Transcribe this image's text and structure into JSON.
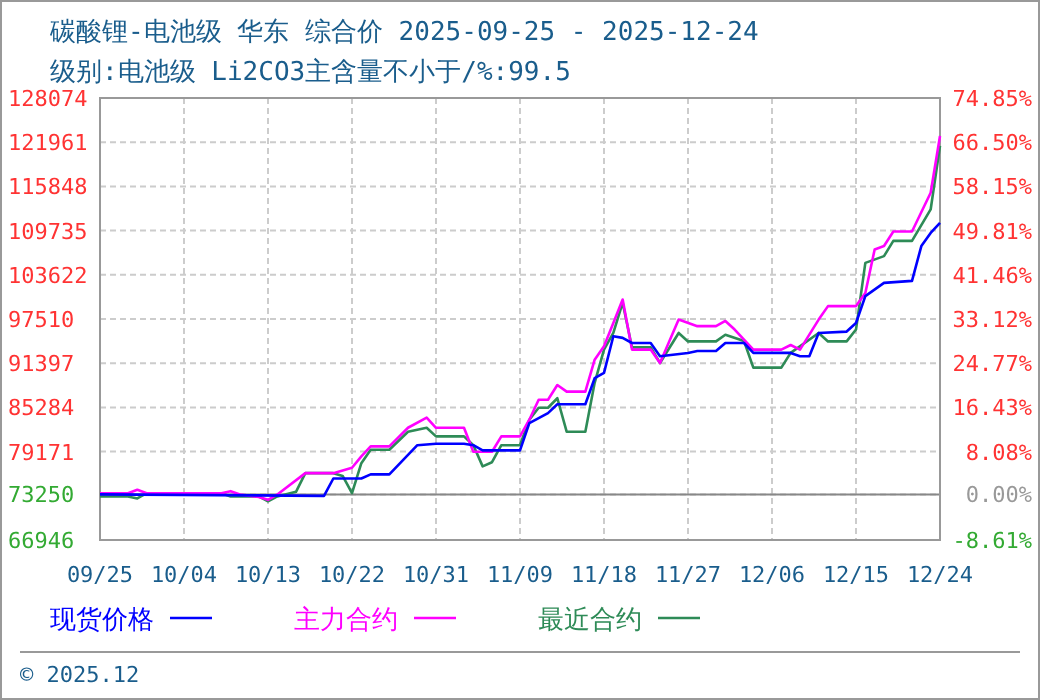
{
  "chart_data": {
    "type": "line",
    "title": "碳酸锂-电池级 华东 综合价 2025-09-25 - 2025-12-24",
    "subtitle": "级别:电池级 Li2CO3主含量不小于/%:99.5",
    "annotations": [
      "© 2025.12"
    ],
    "xlim": [
      "2025-09-25",
      "2025-12-24"
    ],
    "xticks": [
      {
        "value": "2025-09-25",
        "label": "09/25"
      },
      {
        "value": "2025-10-04",
        "label": "10/04"
      },
      {
        "value": "2025-10-13",
        "label": "10/13"
      },
      {
        "value": "2025-10-22",
        "label": "10/22"
      },
      {
        "value": "2025-10-31",
        "label": "10/31"
      },
      {
        "value": "2025-11-09",
        "label": "11/09"
      },
      {
        "value": "2025-11-18",
        "label": "11/18"
      },
      {
        "value": "2025-11-27",
        "label": "11/27"
      },
      {
        "value": "2025-12-06",
        "label": "12/06"
      },
      {
        "value": "2025-12-15",
        "label": "12/15"
      },
      {
        "value": "2025-12-24",
        "label": "12/24"
      }
    ],
    "ylim": [
      66946,
      128074
    ],
    "yticks": [
      66946,
      73250,
      79171,
      85284,
      91397,
      97510,
      103622,
      109735,
      115848,
      121961,
      128074
    ],
    "y2lim": [
      -8.61,
      74.85
    ],
    "y2ticks": [
      {
        "value": -8.61,
        "label": "-8.61%"
      },
      {
        "value": 0,
        "label": "0.00%"
      },
      {
        "value": 8.08,
        "label": "8.08%"
      },
      {
        "value": 16.43,
        "label": "16.43%"
      },
      {
        "value": 24.77,
        "label": "24.77%"
      },
      {
        "value": 33.12,
        "label": "33.12%"
      },
      {
        "value": 41.46,
        "label": "41.46%"
      },
      {
        "value": 49.81,
        "label": "49.81%"
      },
      {
        "value": 58.15,
        "label": "58.15%"
      },
      {
        "value": 66.5,
        "label": "66.50%"
      },
      {
        "value": 74.85,
        "label": "74.85%"
      }
    ],
    "grid": true,
    "legend": "bottom",
    "line_style": "solid",
    "series": [
      {
        "name": "现货价格",
        "color": "#0000ff",
        "x": [
          "2025-09-25",
          "2025-10-19",
          "2025-10-20",
          "2025-10-23",
          "2025-10-24",
          "2025-10-26",
          "2025-10-29",
          "2025-10-31",
          "2025-11-03",
          "2025-11-04",
          "2025-11-05",
          "2025-11-09",
          "2025-11-10",
          "2025-11-12",
          "2025-11-13",
          "2025-11-16",
          "2025-11-17",
          "2025-11-18",
          "2025-11-19",
          "2025-11-20",
          "2025-11-21",
          "2025-11-23",
          "2025-11-24",
          "2025-11-27",
          "2025-11-28",
          "2025-11-30",
          "2025-12-01",
          "2025-12-03",
          "2025-12-04",
          "2025-12-08",
          "2025-12-09",
          "2025-12-10",
          "2025-12-11",
          "2025-12-14",
          "2025-12-15",
          "2025-12-16",
          "2025-12-18",
          "2025-12-21",
          "2025-12-22",
          "2025-12-23",
          "2025-12-24"
        ],
        "values": [
          73250,
          73050,
          75450,
          75450,
          76020,
          76020,
          80060,
          80260,
          80260,
          80060,
          79340,
          79340,
          83110,
          84500,
          85720,
          85720,
          89320,
          90060,
          95130,
          94900,
          94190,
          94190,
          92360,
          92820,
          93080,
          93080,
          94190,
          94190,
          92820,
          92820,
          92360,
          92360,
          95580,
          95770,
          96960,
          100670,
          102500,
          102780,
          107600,
          109420,
          110820
        ]
      },
      {
        "name": "主力合约",
        "color": "#ff00ff",
        "x": [
          "2025-09-25",
          "2025-09-28",
          "2025-09-29",
          "2025-09-30",
          "2025-10-08",
          "2025-10-09",
          "2025-10-10",
          "2025-10-12",
          "2025-10-13",
          "2025-10-14",
          "2025-10-17",
          "2025-10-20",
          "2025-10-22",
          "2025-10-23",
          "2025-10-24",
          "2025-10-26",
          "2025-10-28",
          "2025-10-30",
          "2025-10-31",
          "2025-11-03",
          "2025-11-04",
          "2025-11-06",
          "2025-11-07",
          "2025-11-09",
          "2025-11-10",
          "2025-11-11",
          "2025-11-12",
          "2025-11-13",
          "2025-11-14",
          "2025-11-16",
          "2025-11-17",
          "2025-11-18",
          "2025-11-19",
          "2025-11-20",
          "2025-11-21",
          "2025-11-23",
          "2025-11-24",
          "2025-11-26",
          "2025-11-28",
          "2025-11-30",
          "2025-12-01",
          "2025-12-02",
          "2025-12-04",
          "2025-12-07",
          "2025-12-08",
          "2025-12-09",
          "2025-12-11",
          "2025-12-12",
          "2025-12-15",
          "2025-12-16",
          "2025-12-17",
          "2025-12-18",
          "2025-12-19",
          "2025-12-21",
          "2025-12-23",
          "2025-12-24"
        ],
        "values": [
          73420,
          73420,
          73890,
          73420,
          73420,
          73700,
          73250,
          72900,
          72500,
          73250,
          76190,
          76190,
          76930,
          78510,
          79900,
          79900,
          82470,
          83860,
          82470,
          82470,
          79150,
          79150,
          81280,
          81280,
          83580,
          86350,
          86350,
          88380,
          87460,
          87460,
          91890,
          93750,
          96960,
          100200,
          93280,
          93280,
          91420,
          97430,
          96520,
          96520,
          97240,
          96050,
          93280,
          93280,
          93910,
          93280,
          97430,
          99290,
          99290,
          101120,
          107130,
          107600,
          109620,
          109620,
          114970,
          122830
        ]
      },
      {
        "name": "最近合约",
        "color": "#2e8b57",
        "x": [
          "2025-09-25",
          "2025-09-28",
          "2025-09-29",
          "2025-09-30",
          "2025-10-08",
          "2025-10-09",
          "2025-10-12",
          "2025-10-13",
          "2025-10-14",
          "2025-10-16",
          "2025-10-17",
          "2025-10-20",
          "2025-10-21",
          "2025-10-22",
          "2025-10-23",
          "2025-10-24",
          "2025-10-26",
          "2025-10-28",
          "2025-10-30",
          "2025-10-31",
          "2025-11-03",
          "2025-11-04",
          "2025-11-05",
          "2025-11-06",
          "2025-11-07",
          "2025-11-09",
          "2025-11-10",
          "2025-11-11",
          "2025-11-12",
          "2025-11-13",
          "2025-11-14",
          "2025-11-16",
          "2025-11-17",
          "2025-11-18",
          "2025-11-19",
          "2025-11-20",
          "2025-11-21",
          "2025-11-23",
          "2025-11-24",
          "2025-11-26",
          "2025-11-27",
          "2025-11-30",
          "2025-12-01",
          "2025-12-03",
          "2025-12-04",
          "2025-12-07",
          "2025-12-08",
          "2025-12-11",
          "2025-12-12",
          "2025-12-14",
          "2025-12-15",
          "2025-12-16",
          "2025-12-18",
          "2025-12-19",
          "2025-12-21",
          "2025-12-23",
          "2025-12-24"
        ],
        "values": [
          72970,
          72970,
          72700,
          73420,
          73420,
          72970,
          72970,
          72310,
          72970,
          73610,
          76190,
          76190,
          75800,
          73420,
          77570,
          79430,
          79430,
          81920,
          82470,
          81280,
          81280,
          80060,
          77130,
          77700,
          80060,
          80060,
          83580,
          85240,
          85240,
          86550,
          81920,
          81920,
          88680,
          93280,
          95580,
          99760,
          93580,
          93580,
          91420,
          95580,
          94410,
          94410,
          95340,
          94470,
          90780,
          90780,
          92820,
          95580,
          94410,
          94410,
          96050,
          105270,
          106210,
          108320,
          108320,
          112660,
          121450
        ]
      }
    ]
  }
}
